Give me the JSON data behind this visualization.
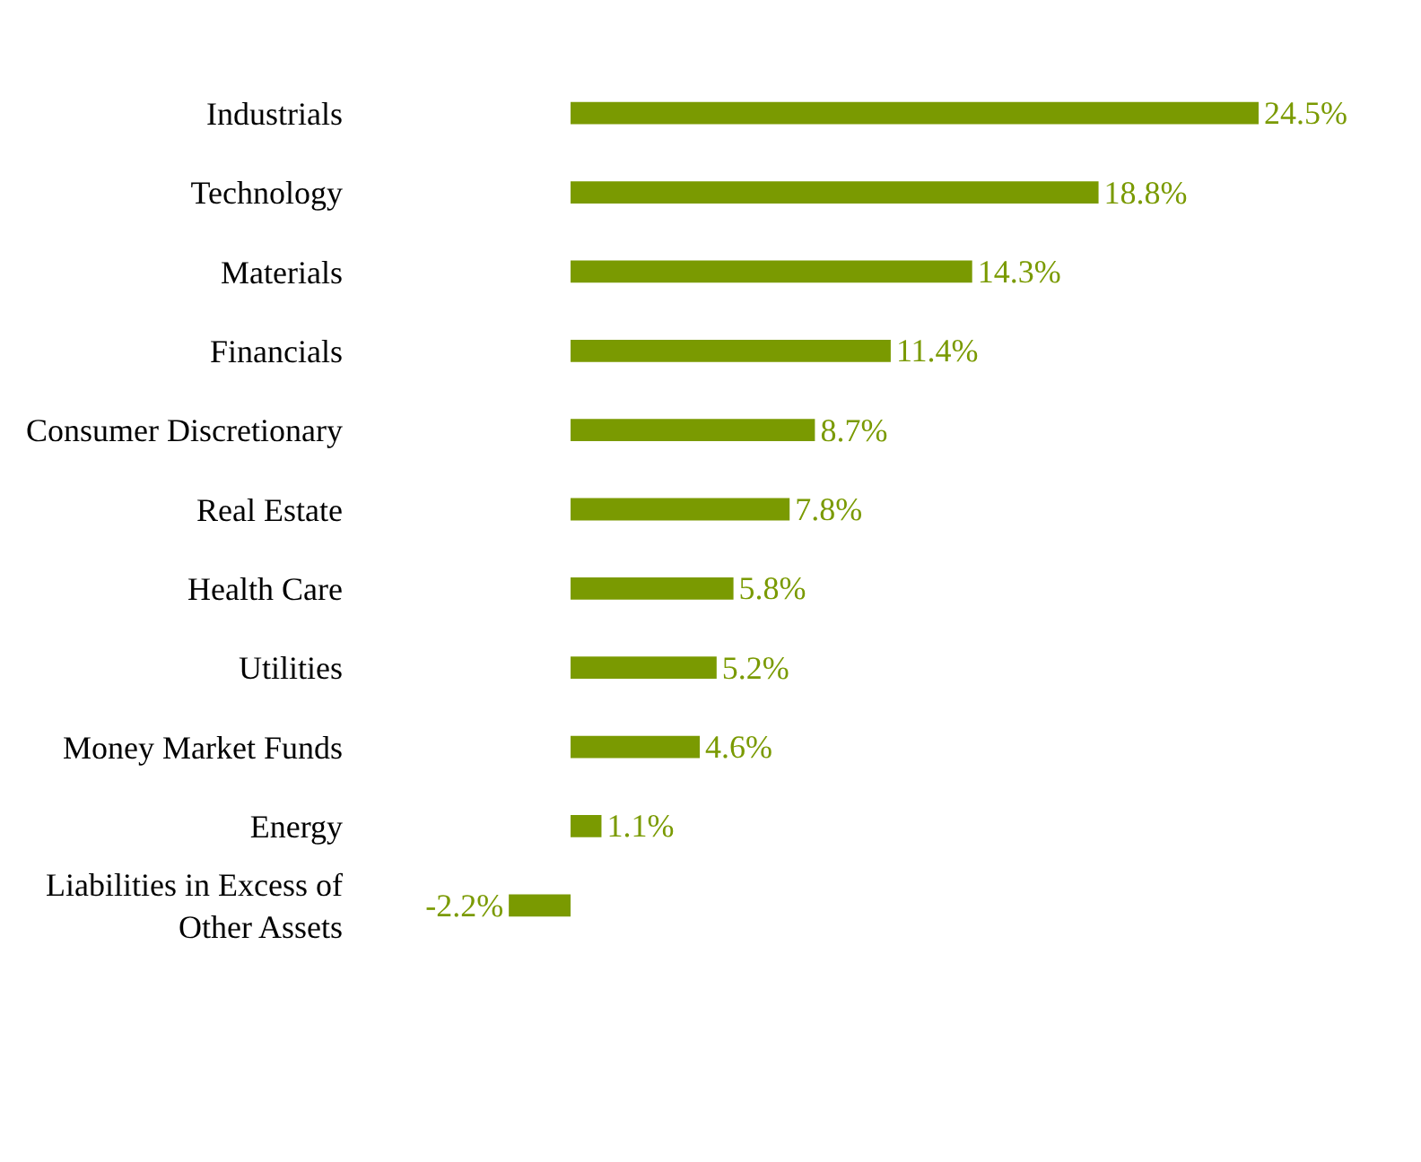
{
  "chart_data": {
    "type": "bar",
    "orientation": "horizontal",
    "categories": [
      "Industrials",
      "Technology",
      "Materials",
      "Financials",
      "Consumer Discretionary",
      "Real Estate",
      "Health Care",
      "Utilities",
      "Money Market Funds",
      "Energy",
      "Liabilities in Excess of Other Assets"
    ],
    "values": [
      24.5,
      18.8,
      14.3,
      11.4,
      8.7,
      7.8,
      5.8,
      5.2,
      4.6,
      1.1,
      -2.2
    ],
    "value_labels": [
      "24.5%",
      "18.8%",
      "14.3%",
      "11.4%",
      "8.7%",
      "7.8%",
      "5.8%",
      "5.2%",
      "4.6%",
      "1.1%",
      "-2.2%"
    ],
    "color": "#7a9a01"
  }
}
